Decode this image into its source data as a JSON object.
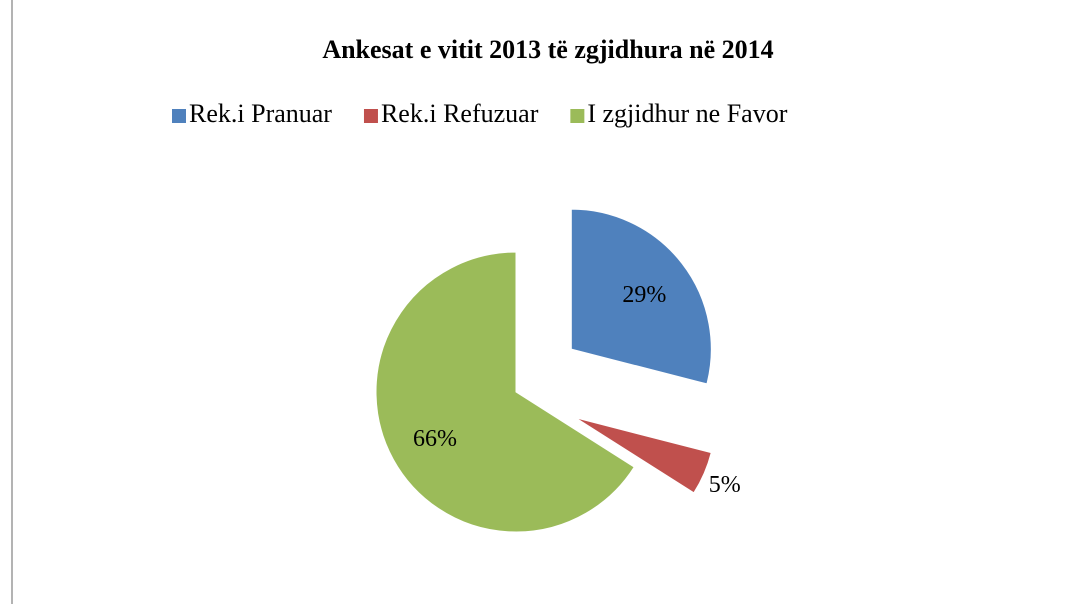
{
  "chart_data": {
    "type": "pie",
    "title": "Ankesat e vitit 2013 të zgjidhura në 2014",
    "categories": [
      "Rek.i Pranuar",
      "Rek.i Refuzuar",
      "I zgjidhur ne Favor"
    ],
    "values": [
      29,
      5,
      66
    ],
    "value_labels": [
      "29%",
      "5%",
      "66%"
    ],
    "colors": [
      "#4f81bd",
      "#c0504d",
      "#9bbb59"
    ],
    "legend": "top"
  }
}
